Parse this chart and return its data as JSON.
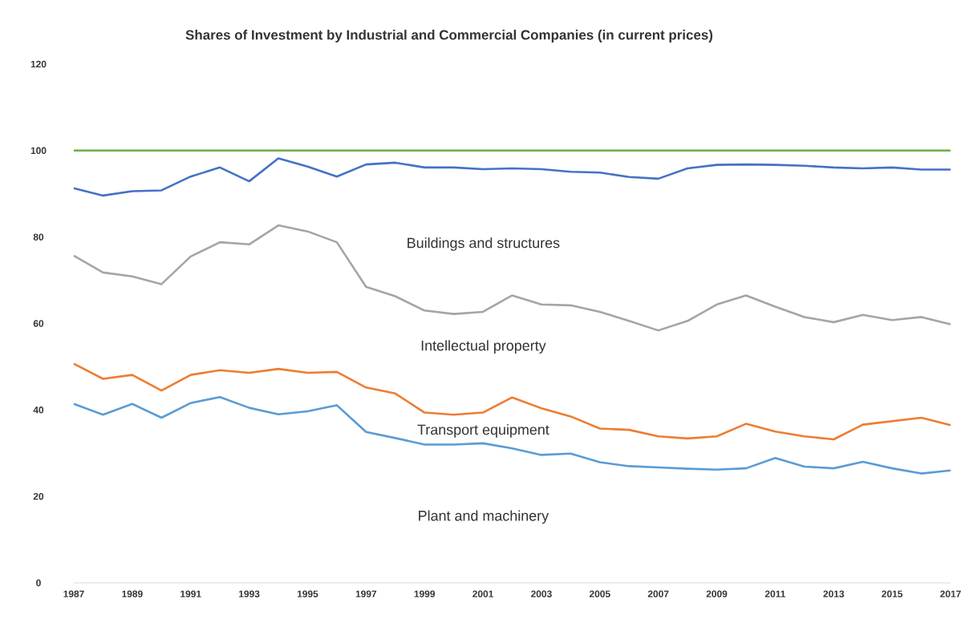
{
  "chart_data": {
    "type": "line",
    "title": "Shares of Investment by Industrial  and Commercial Companies (in current prices)",
    "x": [
      1987,
      1988,
      1989,
      1990,
      1991,
      1992,
      1993,
      1994,
      1995,
      1996,
      1997,
      1998,
      1999,
      2000,
      2001,
      2002,
      2003,
      2004,
      2005,
      2006,
      2007,
      2008,
      2009,
      2010,
      2011,
      2012,
      2013,
      2014,
      2015,
      2016,
      2017
    ],
    "series": [
      {
        "color": "#70ad47",
        "values": [
          100,
          100,
          100,
          100,
          100,
          100,
          100,
          100,
          100,
          100,
          100,
          100,
          100,
          100,
          100,
          100,
          100,
          100,
          100,
          100,
          100,
          100,
          100,
          100,
          100,
          100,
          100,
          100,
          100,
          100,
          100
        ]
      },
      {
        "color": "#4472c4",
        "values": [
          91.3,
          89.6,
          90.6,
          90.8,
          94.0,
          96.1,
          92.9,
          98.2,
          96.3,
          94.0,
          96.8,
          97.2,
          96.1,
          96.1,
          95.7,
          95.9,
          95.7,
          95.1,
          94.9,
          93.9,
          93.5,
          95.9,
          96.7,
          96.8,
          96.7,
          96.5,
          96.1,
          95.9,
          96.1,
          95.6,
          95.6
        ]
      },
      {
        "color": "#a5a5a5",
        "values": [
          75.7,
          71.8,
          70.9,
          69.1,
          75.5,
          78.8,
          78.3,
          82.7,
          81.3,
          78.8,
          68.5,
          66.3,
          63.0,
          62.2,
          62.7,
          66.5,
          64.4,
          64.2,
          62.7,
          60.6,
          58.4,
          60.6,
          64.4,
          66.5,
          63.9,
          61.5,
          60.3,
          62.0,
          60.8,
          61.5,
          59.8
        ]
      },
      {
        "color": "#ed7d31",
        "values": [
          50.7,
          47.2,
          48.1,
          44.5,
          48.1,
          49.2,
          48.6,
          49.5,
          48.6,
          48.8,
          45.2,
          43.8,
          39.4,
          38.9,
          39.4,
          42.9,
          40.4,
          38.5,
          35.7,
          35.4,
          33.9,
          33.4,
          33.9,
          36.8,
          35.0,
          33.9,
          33.2,
          36.6,
          37.4,
          38.2,
          36.5
        ]
      },
      {
        "color": "#5b9bd5",
        "values": [
          41.4,
          38.9,
          41.4,
          38.2,
          41.6,
          43.0,
          40.5,
          39.0,
          39.7,
          41.1,
          34.9,
          33.5,
          32.0,
          32.0,
          32.3,
          31.1,
          29.6,
          29.9,
          27.9,
          27.0,
          26.7,
          26.4,
          26.2,
          26.5,
          28.9,
          26.9,
          26.5,
          28.0,
          26.5,
          25.3,
          26.0
        ]
      }
    ],
    "xlim": [
      1987,
      2017
    ],
    "xticks": [
      1987,
      1989,
      1991,
      1993,
      1995,
      1997,
      1999,
      2001,
      2003,
      2005,
      2007,
      2009,
      2011,
      2013,
      2015,
      2017
    ],
    "ylim": [
      0,
      120
    ],
    "yticks": [
      0,
      20,
      40,
      60,
      80,
      100,
      120
    ],
    "grid": false,
    "annotations": [
      "Buildings and structures",
      "Intellectual property",
      "Transport equipment",
      "Plant and machinery"
    ]
  }
}
